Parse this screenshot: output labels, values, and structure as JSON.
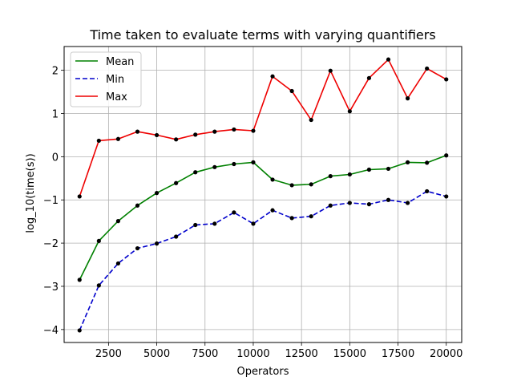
{
  "chart_data": {
    "type": "line",
    "title": "Time taken to evaluate terms with varying quantifiers",
    "xlabel": "Operators",
    "ylabel": "log_10(time(s))",
    "xlim": [
      200,
      20800
    ],
    "ylim": [
      -4.3,
      2.55
    ],
    "xticks": [
      2500,
      5000,
      7500,
      10000,
      12500,
      15000,
      17500,
      20000
    ],
    "xtick_labels": [
      "2500",
      "5000",
      "7500",
      "10000",
      "12500",
      "15000",
      "17500",
      "20000"
    ],
    "yticks": [
      -4,
      -3,
      -2,
      -1,
      0,
      1,
      2
    ],
    "ytick_labels": [
      "−4",
      "−3",
      "−2",
      "−1",
      "0",
      "1",
      "2"
    ],
    "grid": true,
    "legend_position": "top-left",
    "x": [
      1000,
      2000,
      3000,
      4000,
      5000,
      6000,
      7000,
      8000,
      9000,
      10000,
      11000,
      12000,
      13000,
      14000,
      15000,
      16000,
      17000,
      18000,
      19000,
      20000
    ],
    "series": [
      {
        "name": "Mean",
        "color": "#008000",
        "dash": "solid",
        "values": [
          -2.85,
          -1.95,
          -1.49,
          -1.13,
          -0.84,
          -0.61,
          -0.36,
          -0.24,
          -0.17,
          -0.13,
          -0.53,
          -0.66,
          -0.64,
          -0.45,
          -0.41,
          -0.3,
          -0.28,
          -0.13,
          -0.14,
          0.03
        ]
      },
      {
        "name": "Min",
        "color": "#0000cc",
        "dash": "dashed",
        "values": [
          -4.02,
          -2.98,
          -2.47,
          -2.12,
          -2.01,
          -1.85,
          -1.58,
          -1.55,
          -1.29,
          -1.55,
          -1.24,
          -1.42,
          -1.38,
          -1.13,
          -1.07,
          -1.1,
          -1.0,
          -1.07,
          -0.8,
          -0.92
        ]
      },
      {
        "name": "Max",
        "color": "#ee0000",
        "dash": "solid",
        "values": [
          -0.92,
          0.37,
          0.41,
          0.58,
          0.5,
          0.4,
          0.51,
          0.58,
          0.63,
          0.6,
          1.86,
          1.52,
          0.85,
          1.99,
          1.05,
          1.82,
          2.25,
          1.35,
          2.04,
          1.79
        ]
      }
    ]
  }
}
